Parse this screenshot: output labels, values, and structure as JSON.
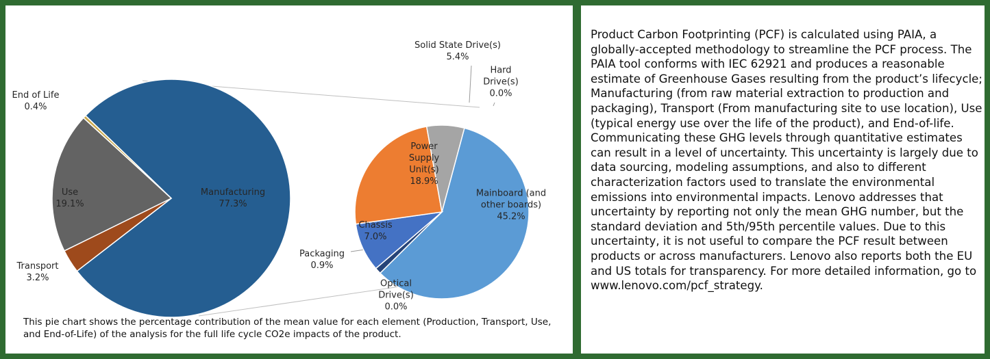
{
  "chart_data": [
    {
      "type": "pie",
      "categories": [
        "Manufacturing",
        "Transport",
        "Use",
        "End of Life"
      ],
      "values": [
        77.3,
        3.2,
        19.1,
        0.4
      ],
      "value_labels": [
        "77.3%",
        "3.2%",
        "19.1%",
        "0.4%"
      ],
      "colors": [
        "#255e91",
        "#9e4a1c",
        "#636363",
        "#c9a94c"
      ]
    },
    {
      "type": "pie",
      "categories": [
        "Mainboard (and other boards)",
        "Optical Drive(s)",
        "Packaging",
        "Chassis",
        "Power Supply Unit(s)",
        "Solid State Drive(s)",
        "Hard Drive(s)"
      ],
      "values": [
        45.2,
        0.0,
        0.9,
        7.0,
        18.9,
        5.4,
        0.0
      ],
      "value_labels": [
        "45.2%",
        "0.0%",
        "0.9%",
        "7.0%",
        "18.9%",
        "5.4%",
        "0.0%"
      ],
      "colors": [
        "#5b9bd5",
        "#7f7f7f",
        "#264478",
        "#4472c4",
        "#ed7d31",
        "#a5a5a5",
        "#ffc000"
      ]
    }
  ],
  "caption": "This pie chart shows the percentage contribution of the mean value for each element (Production, Transport, Use, and End-of-Life) of the analysis for the full life cycle CO2e impacts of the product.",
  "description": "Product Carbon Footprinting (PCF) is calculated using PAIA, a globally-accepted methodology to streamline the PCF process. The PAIA tool conforms with IEC 62921 and produces a reasonable estimate of Greenhouse Gases resulting from the product’s lifecycle; Manufacturing (from raw material extraction to production and packaging), Transport (From manufacturing site to use location), Use (typical energy use over the life of the product), and End-of-life. Communicating these GHG levels through quantitative estimates can result in a level of uncertainty. This uncertainty is largely due to data sourcing, modeling assumptions, and also to different characterization factors used to translate the environmental emissions into environmental impacts. Lenovo addresses that uncertainty by reporting not only the mean GHG number, but the standard deviation and 5th/95th percentile values. Due to this uncertainty, it is not useful to compare the PCF result between products or across manufacturers. Lenovo also reports both the EU and US totals for transparency. For more detailed information, go to www.lenovo.com/pcf_strategy."
}
